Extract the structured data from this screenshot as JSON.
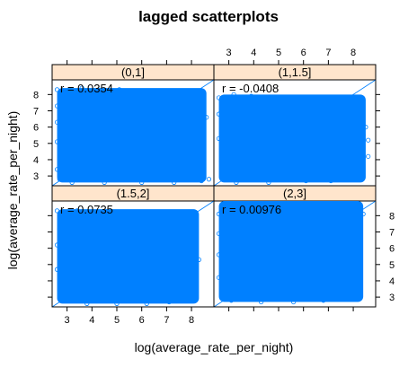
{
  "chart_data": {
    "type": "scatter",
    "title": "lagged scatterplots",
    "xlabel": "log(average_rate_per_night)",
    "ylabel": "log(average_rate_per_night)",
    "xlim": [
      2.4,
      8.9
    ],
    "ylim": [
      2.4,
      8.9
    ],
    "ticks": [
      3,
      4,
      5,
      6,
      7,
      8
    ],
    "panels": [
      {
        "strip": "(0,1]",
        "r_text": "r = 0.0354",
        "x_range": [
          2.6,
          8.6
        ],
        "y_range": [
          2.6,
          8.4
        ],
        "points": [
          [
            2.6,
            8.3
          ],
          [
            2.6,
            7.3
          ],
          [
            2.6,
            6.3
          ],
          [
            2.6,
            5.1
          ],
          [
            2.6,
            3.4
          ],
          [
            2.7,
            2.8
          ],
          [
            3.2,
            2.6
          ],
          [
            4.5,
            2.6
          ],
          [
            6.0,
            2.6
          ],
          [
            7.3,
            2.6
          ],
          [
            8.4,
            2.7
          ],
          [
            8.5,
            3.5
          ],
          [
            8.5,
            4.6
          ],
          [
            8.5,
            5.6
          ],
          [
            8.4,
            6.4
          ],
          [
            8.2,
            7.0
          ],
          [
            7.6,
            7.7
          ],
          [
            7.0,
            8.1
          ],
          [
            6.4,
            8.2
          ],
          [
            5.1,
            8.3
          ],
          [
            4.0,
            8.2
          ],
          [
            3.1,
            8.3
          ],
          [
            8.7,
            2.8
          ],
          [
            8.6,
            6.6
          ],
          [
            8.2,
            5.1
          ],
          [
            3.6,
            8.4
          ]
        ]
      },
      {
        "strip": "(1,1.5]",
        "r_text": "r = -0.0408",
        "x_range": [
          2.6,
          8.5
        ],
        "y_range": [
          2.6,
          8.0
        ],
        "points": [
          [
            2.6,
            7.8
          ],
          [
            2.6,
            6.8
          ],
          [
            2.6,
            5.3
          ],
          [
            2.7,
            3.9
          ],
          [
            2.8,
            3.1
          ],
          [
            3.3,
            2.6
          ],
          [
            4.6,
            2.6
          ],
          [
            6.1,
            2.7
          ],
          [
            7.1,
            2.7
          ],
          [
            7.8,
            3.2
          ],
          [
            7.9,
            4.1
          ],
          [
            8.0,
            5.0
          ],
          [
            8.3,
            4.5
          ],
          [
            8.4,
            5.5
          ],
          [
            8.6,
            5.2
          ],
          [
            7.7,
            5.9
          ],
          [
            7.0,
            6.6
          ],
          [
            6.3,
            7.0
          ],
          [
            5.6,
            7.4
          ],
          [
            4.8,
            7.7
          ],
          [
            3.9,
            7.9
          ],
          [
            3.2,
            8.0
          ],
          [
            8.6,
            4.2
          ],
          [
            8.5,
            6.0
          ],
          [
            8.2,
            3.3
          ],
          [
            7.3,
            7.2
          ]
        ]
      },
      {
        "strip": "(1.5,2]",
        "r_text": "r = 0.0735",
        "x_range": [
          2.6,
          8.3
        ],
        "y_range": [
          2.6,
          8.4
        ],
        "points": [
          [
            2.6,
            8.3
          ],
          [
            2.7,
            7.2
          ],
          [
            2.6,
            6.2
          ],
          [
            2.6,
            4.7
          ],
          [
            2.7,
            3.4
          ],
          [
            3.0,
            2.8
          ],
          [
            3.8,
            2.6
          ],
          [
            5.0,
            2.6
          ],
          [
            6.2,
            2.6
          ],
          [
            7.1,
            2.7
          ],
          [
            7.6,
            3.2
          ],
          [
            7.7,
            4.1
          ],
          [
            7.9,
            5.0
          ],
          [
            8.1,
            4.5
          ],
          [
            7.7,
            5.7
          ],
          [
            7.2,
            6.4
          ],
          [
            6.6,
            6.9
          ],
          [
            6.0,
            7.3
          ],
          [
            5.1,
            7.7
          ],
          [
            4.2,
            8.0
          ],
          [
            3.4,
            8.3
          ],
          [
            8.3,
            5.3
          ],
          [
            8.0,
            5.8
          ],
          [
            7.3,
            4.0
          ],
          [
            7.0,
            6.5
          ],
          [
            2.8,
            7.7
          ]
        ]
      },
      {
        "strip": "(2,3]",
        "r_text": "r = 0.00976",
        "x_range": [
          2.6,
          8.4
        ],
        "y_range": [
          2.7,
          8.9
        ],
        "points": [
          [
            2.6,
            8.1
          ],
          [
            2.6,
            6.9
          ],
          [
            2.6,
            5.6
          ],
          [
            2.6,
            4.2
          ],
          [
            2.7,
            3.2
          ],
          [
            3.1,
            2.8
          ],
          [
            4.3,
            2.7
          ],
          [
            5.6,
            2.7
          ],
          [
            6.8,
            2.8
          ],
          [
            7.7,
            2.9
          ],
          [
            8.2,
            3.5
          ],
          [
            8.3,
            4.4
          ],
          [
            8.3,
            5.3
          ],
          [
            8.3,
            6.2
          ],
          [
            8.2,
            7.0
          ],
          [
            8.0,
            7.6
          ],
          [
            7.5,
            8.1
          ],
          [
            6.8,
            8.4
          ],
          [
            6.0,
            8.3
          ],
          [
            5.0,
            8.3
          ],
          [
            3.9,
            8.6
          ],
          [
            4.6,
            8.8
          ],
          [
            5.6,
            8.8
          ],
          [
            3.3,
            8.4
          ],
          [
            7.2,
            8.4
          ],
          [
            8.4,
            8.1
          ]
        ]
      }
    ]
  }
}
